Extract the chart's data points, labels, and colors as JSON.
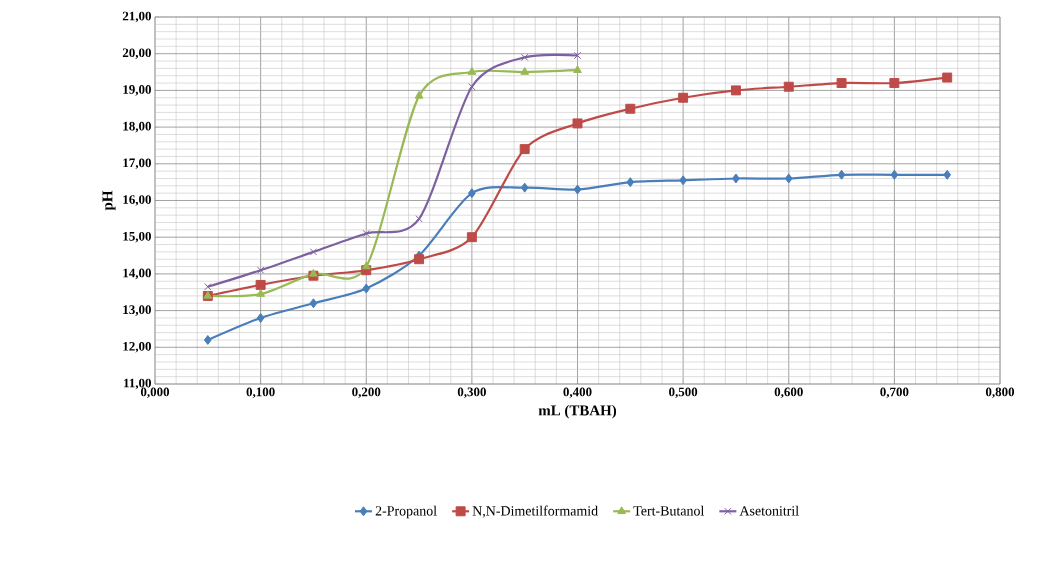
{
  "chart_data": {
    "type": "line",
    "xlabel": "mL (TBAH)",
    "ylabel": "pH",
    "x": [
      0.05,
      0.1,
      0.15,
      0.2,
      0.25,
      0.3,
      0.35,
      0.4,
      0.45,
      0.5,
      0.55,
      0.6,
      0.65,
      0.7,
      0.75
    ],
    "series": [
      {
        "name": "2-Propanol",
        "color": "#4a7ebb",
        "marker": "diamond",
        "values": [
          12.2,
          12.8,
          13.2,
          13.6,
          14.5,
          16.2,
          16.35,
          16.3,
          16.5,
          16.55,
          16.6,
          16.6,
          16.7,
          16.7,
          16.7
        ]
      },
      {
        "name": "N,N-Dimetilformamid",
        "color": "#be4b48",
        "marker": "square",
        "values": [
          13.4,
          13.7,
          13.95,
          14.1,
          14.4,
          15.0,
          17.4,
          18.1,
          18.5,
          18.8,
          19.0,
          19.1,
          19.2,
          19.2,
          19.35
        ]
      },
      {
        "name": "Tert-Butanol",
        "color": "#98b954",
        "marker": "triangle",
        "x": [
          0.05,
          0.1,
          0.15,
          0.2,
          0.25,
          0.3,
          0.35,
          0.4
        ],
        "values": [
          13.4,
          13.45,
          14.0,
          14.2,
          18.85,
          19.5,
          19.5,
          19.55
        ]
      },
      {
        "name": "Asetonitril",
        "color": "#7d60a0",
        "marker": "cross",
        "x": [
          0.05,
          0.1,
          0.15,
          0.2,
          0.25,
          0.3,
          0.35,
          0.4
        ],
        "values": [
          13.65,
          14.1,
          14.6,
          15.1,
          15.5,
          19.1,
          19.9,
          19.95
        ]
      }
    ],
    "xlim": [
      0,
      0.8
    ],
    "xticks": [
      {
        "value": 0,
        "label": "0,000"
      },
      {
        "value": 0.1,
        "label": "0,100"
      },
      {
        "value": 0.2,
        "label": "0,200"
      },
      {
        "value": 0.3,
        "label": "0,300"
      },
      {
        "value": 0.4,
        "label": "0,400"
      },
      {
        "value": 0.5,
        "label": "0,500"
      },
      {
        "value": 0.6,
        "label": "0,600"
      },
      {
        "value": 0.7,
        "label": "0,700"
      },
      {
        "value": 0.8,
        "label": "0,800"
      }
    ],
    "ylim": [
      11,
      21
    ],
    "yticks": [
      {
        "value": 11,
        "label": "11,00"
      },
      {
        "value": 12,
        "label": "12,00"
      },
      {
        "value": 13,
        "label": "13,00"
      },
      {
        "value": 14,
        "label": "14,00"
      },
      {
        "value": 15,
        "label": "15,00"
      },
      {
        "value": 16,
        "label": "16,00"
      },
      {
        "value": 17,
        "label": "17,00"
      },
      {
        "value": 18,
        "label": "18,00"
      },
      {
        "value": 19,
        "label": "19,00"
      },
      {
        "value": 20,
        "label": "20,00"
      },
      {
        "value": 21,
        "label": "21,00"
      }
    ],
    "grid": true,
    "legend": "bottom",
    "line_style": "solid"
  }
}
